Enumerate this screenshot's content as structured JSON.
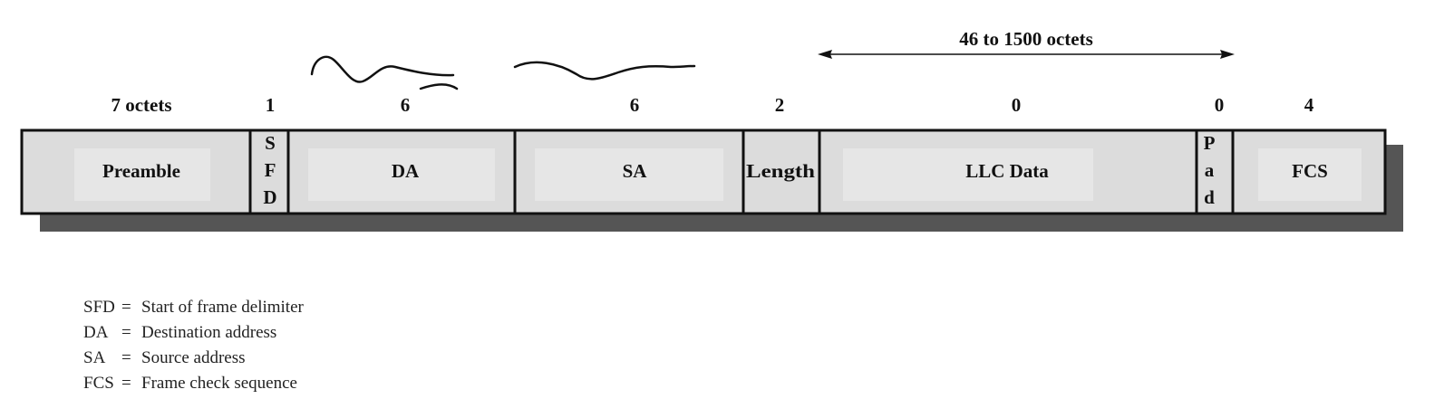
{
  "frame": {
    "span_label": "46 to 1500 octets",
    "fields": [
      {
        "id": "preamble",
        "octets": "7 octets",
        "label": [
          "Preamble"
        ]
      },
      {
        "id": "sfd",
        "octets": "1",
        "label": [
          "S",
          "F",
          "D"
        ]
      },
      {
        "id": "da",
        "octets": "6",
        "label": [
          "DA"
        ]
      },
      {
        "id": "sa",
        "octets": "6",
        "label": [
          "SA"
        ]
      },
      {
        "id": "length",
        "octets": "2",
        "label": [
          "Length"
        ]
      },
      {
        "id": "llc-data",
        "octets": "0",
        "label": [
          "LLC Data"
        ]
      },
      {
        "id": "pad",
        "octets": "0",
        "label": [
          "P",
          "a",
          "d"
        ]
      },
      {
        "id": "fcs",
        "octets": "4",
        "label": [
          "FCS"
        ]
      }
    ],
    "colors": {
      "field_fill": "#dcdcdc",
      "field_inner": "#e8e8e8",
      "shadow": "#555555",
      "border": "#111111"
    }
  },
  "legend": [
    {
      "abbr": "SFD",
      "eq": "=",
      "text": "Start of frame delimiter"
    },
    {
      "abbr": "DA",
      "eq": "=",
      "text": "Destination address"
    },
    {
      "abbr": "SA",
      "eq": "=",
      "text": "Source address"
    },
    {
      "abbr": "FCS",
      "eq": "=",
      "text": "Frame check sequence"
    }
  ]
}
